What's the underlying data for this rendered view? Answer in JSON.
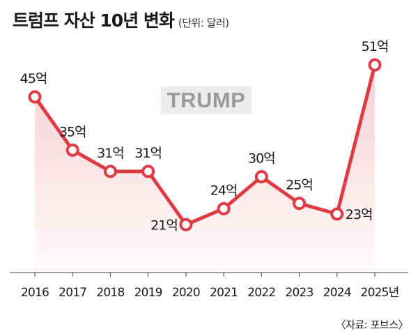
{
  "title": "트럼프 자산 10년 변화",
  "unit_note": "(단위: 달러)",
  "watermark": "TRUMP",
  "source": "〈자료: 포브스〉",
  "colors": {
    "line": "#e03a44",
    "area": "#f6c8cc",
    "axis": "#444444",
    "marker_fill": "#ffffff"
  },
  "chart_data": {
    "type": "area",
    "categories": [
      "2016",
      "2017",
      "2018",
      "2019",
      "2020",
      "2021",
      "2022",
      "2023",
      "2024",
      "2025년"
    ],
    "values": [
      45,
      35,
      31,
      31,
      21,
      24,
      30,
      25,
      23,
      51
    ],
    "data_labels": [
      "45억",
      "35억",
      "31억",
      "31억",
      "21억",
      "24억",
      "30억",
      "25억",
      "23억",
      "51억"
    ],
    "ylim": [
      12,
      56
    ],
    "grid": false,
    "legend": "none"
  }
}
